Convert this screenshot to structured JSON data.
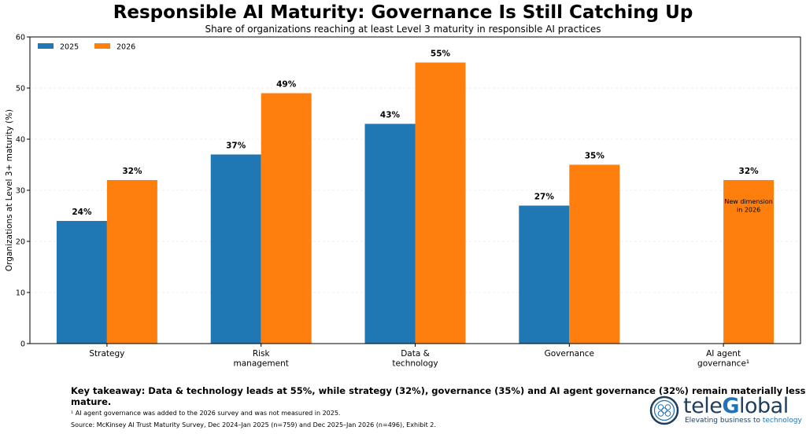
{
  "chart_data": {
    "type": "bar",
    "title": "Responsible AI Maturity: Governance Is Still Catching Up",
    "subtitle": "Share of organizations reaching at least Level 3 maturity in responsible AI practices",
    "ylabel": "Organizations at Level 3+ maturity (%)",
    "xlabel": "",
    "ylim": [
      0,
      60
    ],
    "yticks": [
      0,
      10,
      20,
      30,
      40,
      50,
      60
    ],
    "grid": true,
    "legend_position": "top-left",
    "categories": [
      [
        "Strategy"
      ],
      [
        "Risk",
        "management"
      ],
      [
        "Data &",
        "technology"
      ],
      [
        "Governance"
      ],
      [
        "AI agent",
        "governance¹"
      ]
    ],
    "series": [
      {
        "name": "2025",
        "color": "#1f77b4",
        "values": [
          24,
          37,
          43,
          27,
          null
        ],
        "labels": [
          "24%",
          "37%",
          "43%",
          "27%",
          ""
        ]
      },
      {
        "name": "2026",
        "color": "#ff7f0e",
        "values": [
          32,
          49,
          55,
          35,
          32
        ],
        "labels": [
          "32%",
          "49%",
          "55%",
          "35%",
          "32%"
        ]
      }
    ],
    "annotations": [
      {
        "category_index": 4,
        "series_index": 1,
        "lines": [
          "New dimension",
          "in 2026"
        ]
      }
    ]
  },
  "takeaway": "Key takeaway: Data & technology leads at 55%, while strategy (32%), governance (35%) and AI agent governance (32%) remain materially less mature.",
  "footnotes": {
    "note": "¹ AI agent governance was added to the 2026 survey and was not measured in 2025.",
    "source": "Source: McKinsey AI Trust Maturity Survey, Dec 2024–Jan 2025 (n=759) and Dec 2025–Jan 2026 (n=496), Exhibit 2."
  },
  "logo": {
    "name_prefix": "tele",
    "name_highlight": "G",
    "name_suffix": "lobal",
    "tagline_prefix": "Elevating business to ",
    "tagline_highlight": "technology",
    "icon": "globe-network-icon",
    "color": "#1f3d5c",
    "accent": "#1f73b8"
  }
}
